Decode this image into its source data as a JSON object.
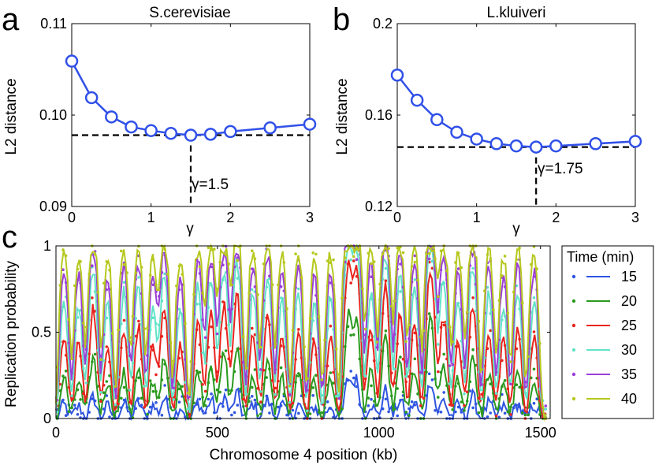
{
  "panel_labels": {
    "a": "a",
    "b": "b",
    "c": "c"
  },
  "colors": {
    "model_line": "#3050e8",
    "axis": "#000000",
    "dashed": "#000000"
  },
  "chart_data": [
    {
      "id": "a",
      "type": "line",
      "title": "S.cerevisiae",
      "xlabel": "γ",
      "ylabel": "L2 distance",
      "xlim": [
        0,
        3
      ],
      "ylim": [
        0.09,
        0.11
      ],
      "xticks": [
        0,
        1,
        2,
        3
      ],
      "xtick_labels": [
        "0",
        "1",
        "2",
        "3"
      ],
      "yticks": [
        0.09,
        0.1,
        0.11
      ],
      "ytick_labels": [
        "0.09",
        "0.10",
        "0.11"
      ],
      "series": [
        {
          "marker": "circle-open",
          "x": [
            0,
            0.25,
            0.5,
            0.75,
            1.0,
            1.25,
            1.5,
            1.75,
            2.0,
            2.5,
            3.0
          ],
          "y": [
            0.1059,
            0.1019,
            0.0998,
            0.0987,
            0.0983,
            0.098,
            0.0978,
            0.0979,
            0.0982,
            0.0986,
            0.099
          ]
        }
      ],
      "min_hline_y": 0.0978,
      "min_vline_x": 1.5,
      "annotation": "γ=1.5"
    },
    {
      "id": "b",
      "type": "line",
      "title": "L.kluiveri",
      "xlabel": "γ",
      "ylabel": "L2 distance",
      "xlim": [
        0,
        3
      ],
      "ylim": [
        0.12,
        0.2
      ],
      "xticks": [
        0,
        1,
        2,
        3
      ],
      "xtick_labels": [
        "0",
        "1",
        "2",
        "3"
      ],
      "yticks": [
        0.12,
        0.16,
        0.2
      ],
      "ytick_labels": [
        "0.12",
        "0.16",
        "0.2"
      ],
      "series": [
        {
          "marker": "circle-open",
          "x": [
            0,
            0.25,
            0.5,
            0.75,
            1.0,
            1.25,
            1.5,
            1.75,
            2.0,
            2.5,
            3.0
          ],
          "y": [
            0.1775,
            0.1665,
            0.158,
            0.1525,
            0.1495,
            0.1475,
            0.1465,
            0.146,
            0.1465,
            0.1475,
            0.1485
          ]
        }
      ],
      "min_hline_y": 0.146,
      "min_vline_x": 1.75,
      "annotation": "γ=1.75"
    },
    {
      "id": "c",
      "type": "line",
      "xlabel": "Chromosome 4 position (kb)",
      "ylabel": "Replication probability",
      "xlim": [
        0,
        1530
      ],
      "ylim": [
        0,
        1
      ],
      "xticks": [
        0,
        500,
        1000,
        1500
      ],
      "xtick_labels": [
        "0",
        "500",
        "1000",
        "1500"
      ],
      "yticks": [
        0,
        0.5,
        1
      ],
      "ytick_labels": [
        "0",
        "0.5",
        "1"
      ],
      "legend": {
        "title": "Time (min)",
        "position": "outside-right",
        "entries": [
          "15",
          "20",
          "25",
          "30",
          "35",
          "40"
        ]
      },
      "origins_kb": [
        25,
        70,
        115,
        160,
        210,
        255,
        300,
        335,
        385,
        440,
        480,
        520,
        560,
        610,
        655,
        700,
        750,
        800,
        850,
        905,
        930,
        975,
        1020,
        1065,
        1110,
        1160,
        1200,
        1245,
        1290,
        1340,
        1385,
        1430,
        1480
      ],
      "origin_strength": [
        0.5,
        0.45,
        0.8,
        0.45,
        0.55,
        0.6,
        0.45,
        0.75,
        0.45,
        0.6,
        0.7,
        0.85,
        0.95,
        0.55,
        0.7,
        0.5,
        0.55,
        0.45,
        0.5,
        1.6,
        1.5,
        0.55,
        1.1,
        0.7,
        0.6,
        1.55,
        0.7,
        0.5,
        0.85,
        0.55,
        0.45,
        0.55,
        0.5
      ],
      "series": [
        {
          "name": "15",
          "color": "#2f55e0",
          "time": 15
        },
        {
          "name": "20",
          "color": "#2a9a1e",
          "time": 20
        },
        {
          "name": "25",
          "color": "#e8241e",
          "time": 25
        },
        {
          "name": "30",
          "color": "#62e3c7",
          "time": 30
        },
        {
          "name": "35",
          "color": "#9b3fd8",
          "time": 35
        },
        {
          "name": "40",
          "color": "#b6c81e",
          "time": 40
        }
      ]
    }
  ]
}
